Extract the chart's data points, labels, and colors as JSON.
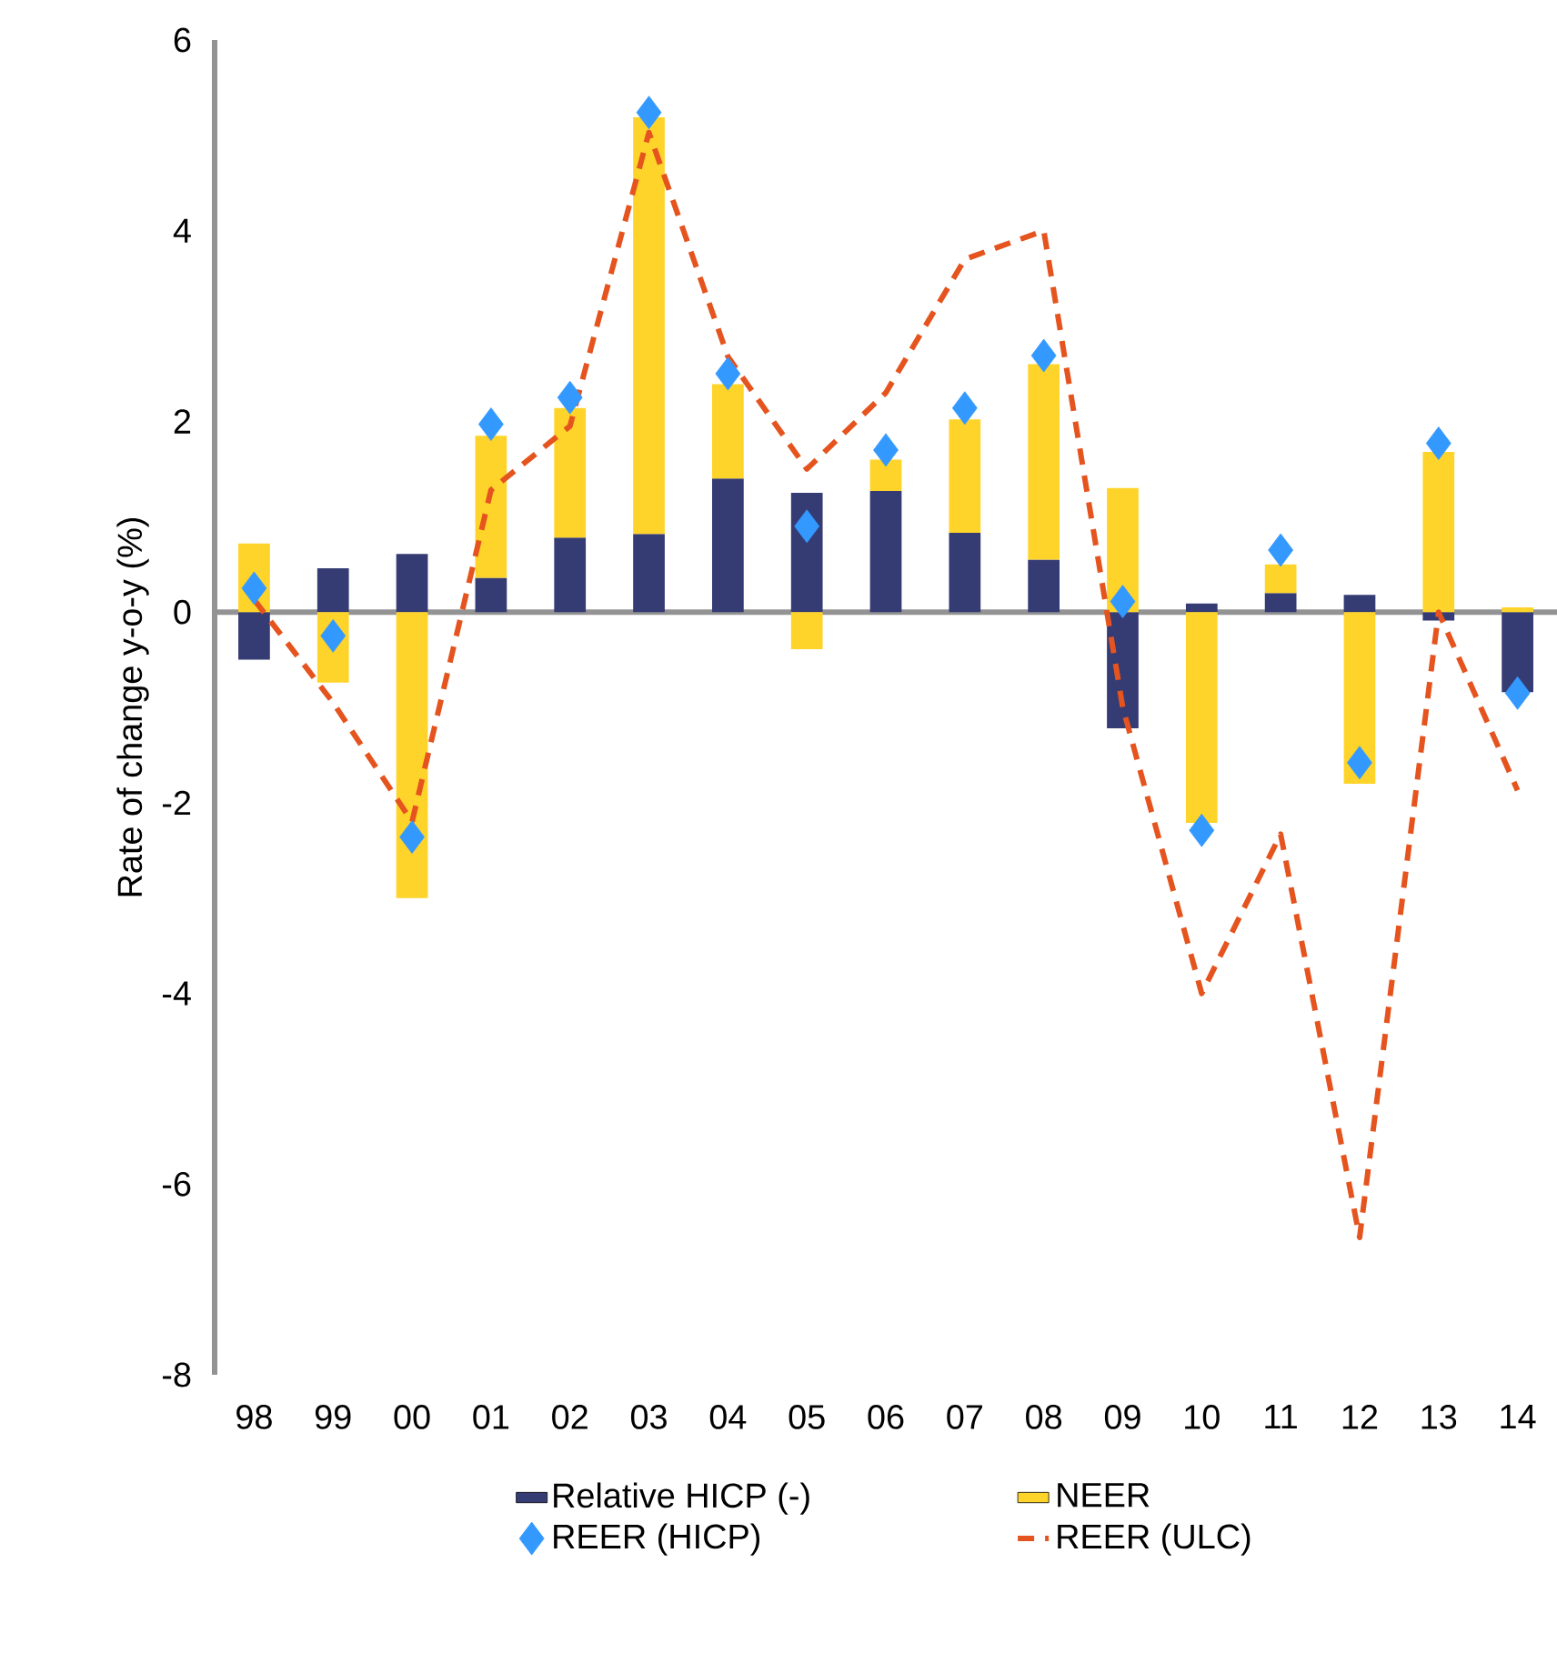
{
  "chart_data": {
    "type": "bar",
    "ylabel": "Rate of change y-o-y (%)",
    "categories": [
      "98",
      "99",
      "00",
      "01",
      "02",
      "03",
      "04",
      "05",
      "06",
      "07",
      "08",
      "09",
      "10",
      "11",
      "12",
      "13",
      "14"
    ],
    "ylim": [
      -8,
      6
    ],
    "yticks": [
      -8,
      -6,
      -4,
      -2,
      0,
      2,
      4,
      6
    ],
    "stacked": true,
    "legend": "bottom",
    "series": [
      {
        "name": "Relative HICP (-)",
        "color": "#353b73",
        "values": [
          -0.5,
          0.46,
          0.61,
          0.36,
          0.78,
          0.82,
          1.4,
          1.25,
          1.27,
          0.83,
          0.55,
          -1.22,
          0.09,
          0.2,
          0.18,
          -0.09,
          -0.84
        ]
      },
      {
        "name": "NEER",
        "color": "#ffd42a",
        "values": [
          0.72,
          -0.74,
          -3.0,
          1.49,
          1.36,
          4.37,
          0.99,
          -0.39,
          0.33,
          1.19,
          2.05,
          1.3,
          -2.21,
          0.3,
          -1.8,
          1.68,
          0.05
        ]
      },
      {
        "name": "REER (HICP)",
        "type": "scatter",
        "color": "#3399ff",
        "marker": "diamond",
        "values": [
          0.25,
          -0.25,
          -2.36,
          1.97,
          2.25,
          5.24,
          2.5,
          0.9,
          1.7,
          2.14,
          2.69,
          0.11,
          -2.29,
          0.65,
          -1.58,
          1.77,
          -0.85
        ]
      },
      {
        "name": "REER (ULC)",
        "type": "line",
        "color": "#e5541e",
        "line_style": "dashed",
        "values": [
          0.13,
          -0.95,
          -2.2,
          1.28,
          1.95,
          5.03,
          2.68,
          1.5,
          2.3,
          3.7,
          4.0,
          -1.0,
          -4.0,
          -2.33,
          -6.56,
          0.0,
          -1.87
        ]
      }
    ]
  }
}
